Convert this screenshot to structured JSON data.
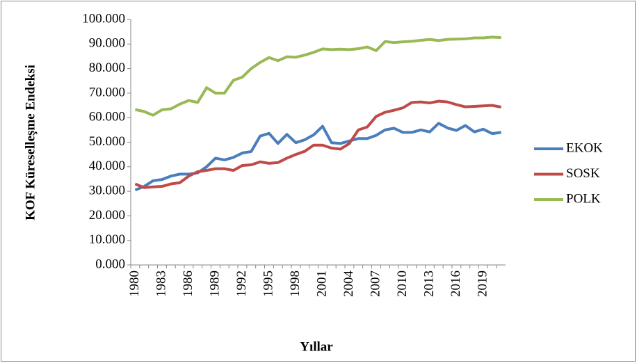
{
  "chart_data": {
    "type": "line",
    "x_label": "Yıllar",
    "y_label": "KOF Küreselleşme Endeksi",
    "categories": [
      "1980",
      null,
      null,
      "1983",
      null,
      null,
      "1986",
      null,
      null,
      "1989",
      null,
      null,
      "1992",
      null,
      null,
      "1995",
      null,
      null,
      "1998",
      null,
      null,
      "2001",
      null,
      null,
      "2004",
      null,
      null,
      "2007",
      null,
      null,
      "2010",
      null,
      null,
      "2013",
      null,
      null,
      "2016",
      null,
      null,
      "2019",
      null,
      null
    ],
    "series": [
      {
        "name": "EKOK",
        "color": "#4a7ebb",
        "values": [
          30.5,
          32,
          34.3,
          34.8,
          36.2,
          37,
          37,
          37.5,
          40,
          43.5,
          42.8,
          43.8,
          45.6,
          46.2,
          52.5,
          53.6,
          49.5,
          53.2,
          49.8,
          51,
          53,
          56.5,
          49.8,
          49.5,
          50.5,
          51.5,
          51.5,
          52.8,
          55,
          55.7,
          54,
          54,
          55,
          54.2,
          57.7,
          55.8,
          54.8,
          56.8,
          54.2,
          55.3,
          53.5,
          54
        ]
      },
      {
        "name": "SOSK",
        "color": "#be4b48",
        "values": [
          33,
          31.5,
          31.8,
          32,
          33,
          33.5,
          36.2,
          38,
          38.5,
          39.2,
          39.2,
          38.5,
          40.5,
          40.8,
          42,
          41.4,
          41.7,
          43.5,
          45,
          46.3,
          48.8,
          48.8,
          47.6,
          47.2,
          49.5,
          55,
          56.2,
          60.5,
          62.2,
          63,
          64,
          66.2,
          66.4,
          66,
          66.7,
          66.4,
          65.3,
          64.4,
          64.6,
          64.8,
          65,
          64.3
        ]
      },
      {
        "name": "POLK",
        "color": "#98b954",
        "values": [
          63.3,
          62.5,
          61,
          63.2,
          63.6,
          65.5,
          67,
          66.2,
          72.2,
          70,
          70,
          75.2,
          76.5,
          80,
          82.5,
          84.5,
          83.2,
          84.8,
          84.6,
          85.5,
          86.6,
          88,
          87.7,
          87.9,
          87.7,
          88.1,
          88.8,
          87.3,
          91,
          90.6,
          90.9,
          91.1,
          91.5,
          91.9,
          91.4,
          91.9,
          92,
          92.1,
          92.5,
          92.5,
          92.8,
          92.6
        ]
      }
    ],
    "ylim": [
      0,
      100
    ],
    "yticks": [
      {
        "value": 0,
        "label": "0.000"
      },
      {
        "value": 10,
        "label": "10.000"
      },
      {
        "value": 20,
        "label": "20.000"
      },
      {
        "value": 30,
        "label": "30.000"
      },
      {
        "value": 40,
        "label": "40.000"
      },
      {
        "value": 50,
        "label": "50.000"
      },
      {
        "value": 60,
        "label": "60.000"
      },
      {
        "value": 70,
        "label": "70.000"
      },
      {
        "value": 80,
        "label": "80.000"
      },
      {
        "value": 90,
        "label": "90.000"
      },
      {
        "value": 100,
        "label": "100.000"
      }
    ],
    "grid": false,
    "legend": "right"
  }
}
